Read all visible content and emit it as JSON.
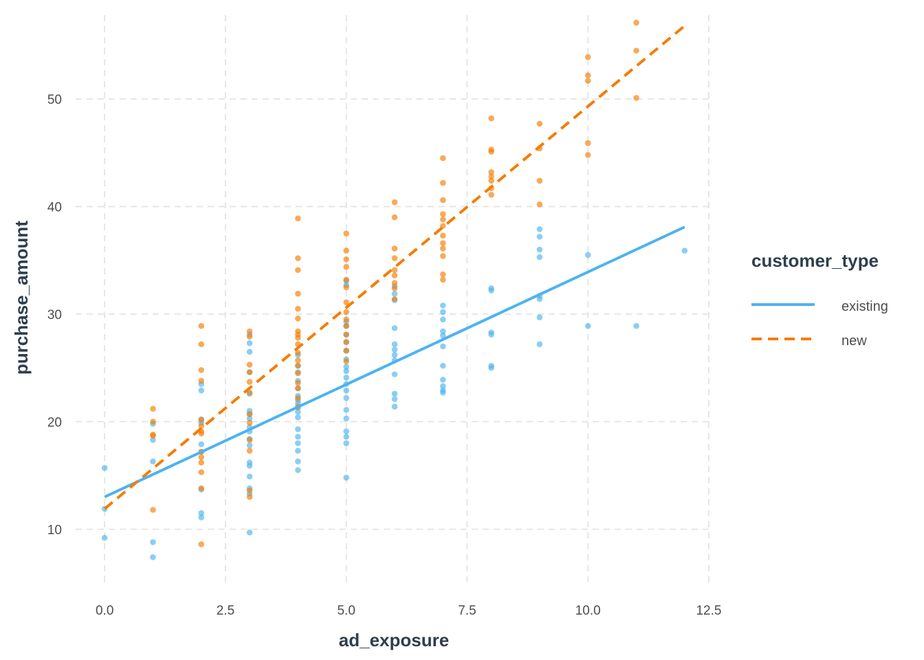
{
  "chart_data": {
    "type": "scatter",
    "xlabel": "ad_exposure",
    "ylabel": "purchase_amount",
    "xlim": [
      -0.6,
      12.6
    ],
    "ylim": [
      5,
      57.8
    ],
    "x_ticks": [
      0.0,
      2.5,
      5.0,
      7.5,
      10.0,
      12.5
    ],
    "x_tick_labels": [
      "0.0",
      "2.5",
      "5.0",
      "7.5",
      "10.0",
      "12.5"
    ],
    "y_ticks": [
      10,
      20,
      30,
      40,
      50
    ],
    "y_tick_labels": [
      "10",
      "20",
      "30",
      "40",
      "50"
    ],
    "grid": true,
    "legend": {
      "title": "customer_type",
      "position": "right",
      "entries": [
        "existing",
        "new"
      ]
    },
    "series": [
      {
        "name": "existing",
        "color": "#4db3f0",
        "line_style": "solid",
        "trend": {
          "x": [
            0,
            12
          ],
          "y": [
            13.0,
            38.1
          ]
        },
        "points": [
          [
            0,
            15.7
          ],
          [
            0,
            11.9
          ],
          [
            0,
            9.2
          ],
          [
            1,
            19.8
          ],
          [
            1,
            18.3
          ],
          [
            1,
            16.3
          ],
          [
            1,
            8.8
          ],
          [
            1,
            7.4
          ],
          [
            2,
            23.5
          ],
          [
            2,
            22.9
          ],
          [
            2,
            20.2
          ],
          [
            2,
            19.9
          ],
          [
            2,
            17.9
          ],
          [
            2,
            17.2
          ],
          [
            2,
            13.7
          ],
          [
            2,
            11.5
          ],
          [
            2,
            11.1
          ],
          [
            3,
            28.1
          ],
          [
            3,
            27.3
          ],
          [
            3,
            26.5
          ],
          [
            3,
            24.6
          ],
          [
            3,
            22.6
          ],
          [
            3,
            21.0
          ],
          [
            3,
            20.7
          ],
          [
            3,
            20.3
          ],
          [
            3,
            19.5
          ],
          [
            3,
            19.1
          ],
          [
            3,
            18.4
          ],
          [
            3,
            17.8
          ],
          [
            3,
            16.2
          ],
          [
            3,
            15.9
          ],
          [
            3,
            14.9
          ],
          [
            3,
            13.8
          ],
          [
            3,
            13.3
          ],
          [
            3,
            9.7
          ],
          [
            4,
            26.2
          ],
          [
            4,
            25.2
          ],
          [
            4,
            24.6
          ],
          [
            4,
            23.8
          ],
          [
            4,
            23.1
          ],
          [
            4,
            22.4
          ],
          [
            4,
            22.0
          ],
          [
            4,
            21.7
          ],
          [
            4,
            21.3
          ],
          [
            4,
            20.9
          ],
          [
            4,
            20.4
          ],
          [
            4,
            19.3
          ],
          [
            4,
            18.6
          ],
          [
            4,
            18.0
          ],
          [
            4,
            17.3
          ],
          [
            4,
            16.3
          ],
          [
            4,
            15.5
          ],
          [
            5,
            33.1
          ],
          [
            5,
            32.7
          ],
          [
            5,
            29.3
          ],
          [
            5,
            28.9
          ],
          [
            5,
            28.1
          ],
          [
            5,
            27.4
          ],
          [
            5,
            26.6
          ],
          [
            5,
            25.8
          ],
          [
            5,
            25.1
          ],
          [
            5,
            24.7
          ],
          [
            5,
            24.1
          ],
          [
            5,
            23.5
          ],
          [
            5,
            22.9
          ],
          [
            5,
            22.2
          ],
          [
            5,
            21.1
          ],
          [
            5,
            20.3
          ],
          [
            5,
            19.1
          ],
          [
            5,
            18.6
          ],
          [
            5,
            18.0
          ],
          [
            5,
            14.8
          ],
          [
            6,
            32.6
          ],
          [
            6,
            31.9
          ],
          [
            6,
            31.3
          ],
          [
            6,
            28.7
          ],
          [
            6,
            27.2
          ],
          [
            6,
            26.7
          ],
          [
            6,
            26.2
          ],
          [
            6,
            25.7
          ],
          [
            6,
            24.4
          ],
          [
            6,
            22.6
          ],
          [
            6,
            22.1
          ],
          [
            6,
            21.4
          ],
          [
            7,
            30.8
          ],
          [
            7,
            30.2
          ],
          [
            7,
            29.5
          ],
          [
            7,
            28.4
          ],
          [
            7,
            28.0
          ],
          [
            7,
            27.0
          ],
          [
            7,
            25.2
          ],
          [
            7,
            23.9
          ],
          [
            7,
            23.3
          ],
          [
            7,
            22.9
          ],
          [
            7,
            22.7
          ],
          [
            8,
            32.4
          ],
          [
            8,
            32.2
          ],
          [
            8,
            28.3
          ],
          [
            8,
            28.1
          ],
          [
            8,
            25.2
          ],
          [
            8,
            25.0
          ],
          [
            9,
            37.9
          ],
          [
            9,
            37.2
          ],
          [
            9,
            36.0
          ],
          [
            9,
            35.3
          ],
          [
            9,
            31.7
          ],
          [
            9,
            31.4
          ],
          [
            9,
            29.7
          ],
          [
            9,
            27.2
          ],
          [
            10,
            35.5
          ],
          [
            10,
            28.9
          ],
          [
            11,
            28.9
          ],
          [
            12,
            35.9
          ]
        ]
      },
      {
        "name": "new",
        "color": "#f57c00",
        "line_style": "dashed",
        "trend": {
          "x": [
            0,
            12
          ],
          "y": [
            11.9,
            56.8
          ]
        },
        "points": [
          [
            1,
            21.2
          ],
          [
            1,
            20.0
          ],
          [
            1,
            18.8
          ],
          [
            1,
            18.7
          ],
          [
            1,
            11.8
          ],
          [
            2,
            28.9
          ],
          [
            2,
            27.2
          ],
          [
            2,
            24.8
          ],
          [
            2,
            23.8
          ],
          [
            2,
            20.2
          ],
          [
            2,
            19.6
          ],
          [
            2,
            19.1
          ],
          [
            2,
            18.9
          ],
          [
            2,
            17.2
          ],
          [
            2,
            16.7
          ],
          [
            2,
            16.2
          ],
          [
            2,
            15.3
          ],
          [
            2,
            13.8
          ],
          [
            2,
            8.6
          ],
          [
            3,
            28.4
          ],
          [
            3,
            27.9
          ],
          [
            3,
            25.3
          ],
          [
            3,
            24.6
          ],
          [
            3,
            23.7
          ],
          [
            3,
            22.7
          ],
          [
            3,
            20.7
          ],
          [
            3,
            19.9
          ],
          [
            3,
            18.3
          ],
          [
            3,
            17.3
          ],
          [
            3,
            13.6
          ],
          [
            3,
            13.0
          ],
          [
            4,
            38.9
          ],
          [
            4,
            35.2
          ],
          [
            4,
            34.1
          ],
          [
            4,
            31.9
          ],
          [
            4,
            30.5
          ],
          [
            4,
            29.6
          ],
          [
            4,
            28.4
          ],
          [
            4,
            28.1
          ],
          [
            4,
            27.8
          ],
          [
            4,
            27.2
          ],
          [
            4,
            26.4
          ],
          [
            4,
            25.7
          ],
          [
            4,
            25.2
          ],
          [
            4,
            24.5
          ],
          [
            4,
            23.6
          ],
          [
            4,
            23.1
          ],
          [
            4,
            22.2
          ],
          [
            4,
            21.4
          ],
          [
            5,
            37.5
          ],
          [
            5,
            35.9
          ],
          [
            5,
            35.1
          ],
          [
            5,
            34.4
          ],
          [
            5,
            33.2
          ],
          [
            5,
            32.5
          ],
          [
            5,
            31.1
          ],
          [
            5,
            30.2
          ],
          [
            5,
            29.5
          ],
          [
            5,
            28.9
          ],
          [
            5,
            28.1
          ],
          [
            5,
            27.4
          ],
          [
            5,
            26.6
          ],
          [
            5,
            25.6
          ],
          [
            6,
            40.4
          ],
          [
            6,
            39.0
          ],
          [
            6,
            36.1
          ],
          [
            6,
            35.2
          ],
          [
            6,
            34.1
          ],
          [
            6,
            33.6
          ],
          [
            6,
            32.9
          ],
          [
            6,
            32.4
          ],
          [
            6,
            31.4
          ],
          [
            7,
            44.5
          ],
          [
            7,
            42.2
          ],
          [
            7,
            40.6
          ],
          [
            7,
            39.3
          ],
          [
            7,
            38.8
          ],
          [
            7,
            38.2
          ],
          [
            7,
            37.3
          ],
          [
            7,
            36.6
          ],
          [
            7,
            36.1
          ],
          [
            7,
            35.4
          ],
          [
            7,
            33.7
          ],
          [
            7,
            33.2
          ],
          [
            8,
            48.2
          ],
          [
            8,
            45.3
          ],
          [
            8,
            45.1
          ],
          [
            8,
            43.2
          ],
          [
            8,
            42.8
          ],
          [
            8,
            42.4
          ],
          [
            8,
            41.7
          ],
          [
            8,
            41.1
          ],
          [
            9,
            47.7
          ],
          [
            9,
            45.4
          ],
          [
            9,
            42.4
          ],
          [
            9,
            40.2
          ],
          [
            10,
            53.9
          ],
          [
            10,
            52.2
          ],
          [
            10,
            51.7
          ],
          [
            10,
            45.9
          ],
          [
            10,
            44.8
          ],
          [
            11,
            57.1
          ],
          [
            11,
            54.5
          ],
          [
            11,
            50.1
          ]
        ]
      }
    ]
  }
}
